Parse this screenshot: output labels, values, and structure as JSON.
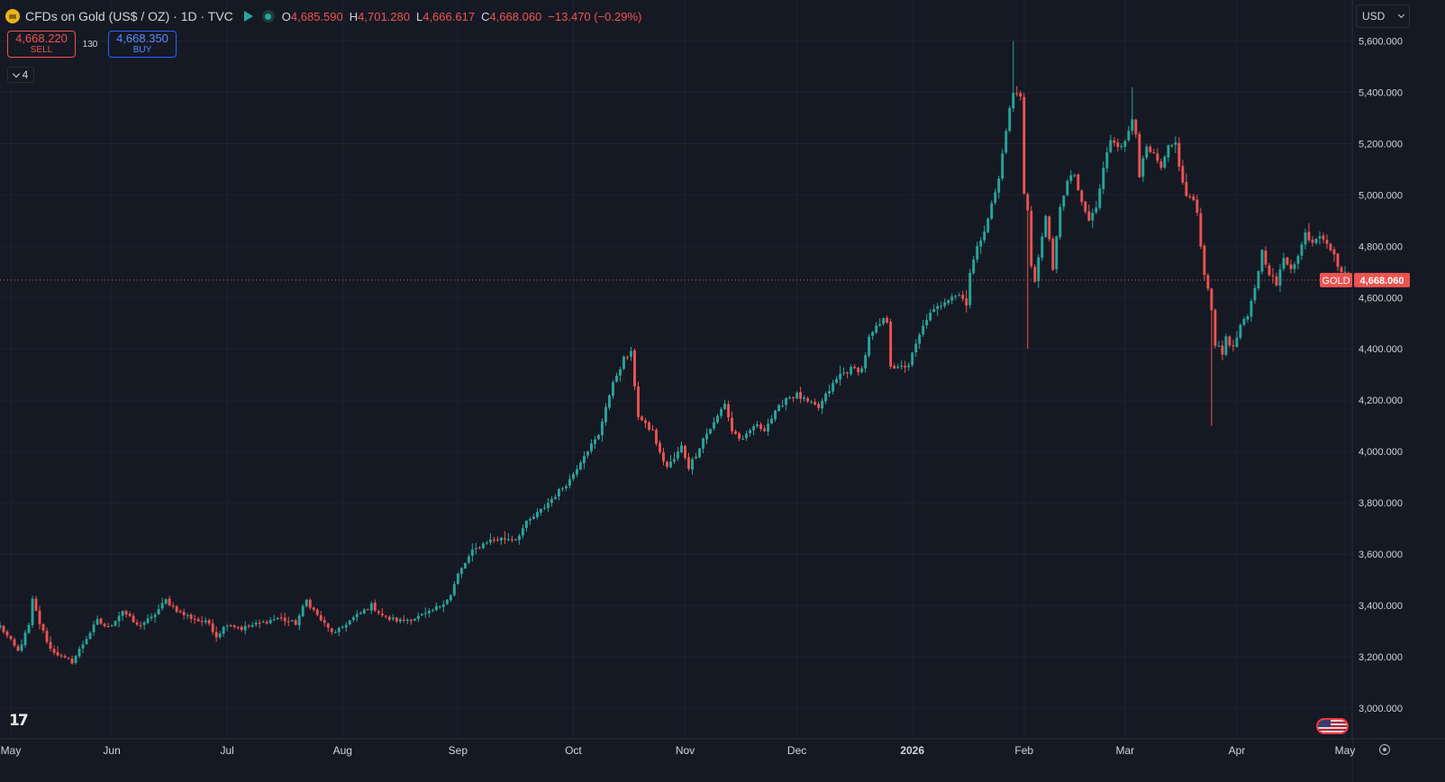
{
  "header": {
    "symbol_title": "CFDs on Gold (US$ / OZ) · 1D · TVC",
    "ohlc": {
      "open_label": "O",
      "open": "4,685.590",
      "high_label": "H",
      "high": "4,701.280",
      "low_label": "L",
      "low": "4,666.617",
      "close_label": "C",
      "close": "4,668.060",
      "change": "−13.470 (−0.29%)"
    }
  },
  "trade": {
    "sell_price": "4,668.220",
    "sell_label": "SELL",
    "spread": "130",
    "buy_price": "4,668.350",
    "buy_label": "BUY"
  },
  "indicators_toggle": {
    "count": "4"
  },
  "currency": {
    "selected": "USD"
  },
  "last_price": {
    "symbol": "GOLD",
    "value": "4,668.060",
    "numeric": 4668.06
  },
  "logo_text": "17",
  "colors": {
    "background": "#151924",
    "up": "#26a69a",
    "down": "#ef5350",
    "text": "#d1d4dc",
    "grid": "#1e2230",
    "buy": "#2962ff"
  },
  "chart_data": {
    "type": "candlestick",
    "title": "CFDs on Gold (US$ / OZ)",
    "interval": "1D",
    "source": "TVC",
    "currency": "USD",
    "ylim": [
      2880,
      5760
    ],
    "y_ticks": [
      "3,000.000",
      "3,200.000",
      "3,400.000",
      "3,600.000",
      "3,800.000",
      "4,000.000",
      "4,200.000",
      "4,400.000",
      "4,600.000",
      "4,800.000",
      "5,000.000",
      "5,200.000",
      "5,400.000",
      "5,600.000"
    ],
    "y_tick_values": [
      3000,
      3200,
      3400,
      3600,
      3800,
      4000,
      4200,
      4400,
      4600,
      4800,
      5000,
      5200,
      5400,
      5600
    ],
    "x_ticks": [
      {
        "label": "May",
        "index": 3
      },
      {
        "label": "Jun",
        "index": 31
      },
      {
        "label": "Jul",
        "index": 63
      },
      {
        "label": "Aug",
        "index": 95
      },
      {
        "label": "Sep",
        "index": 127
      },
      {
        "label": "Oct",
        "index": 159
      },
      {
        "label": "Nov",
        "index": 190
      },
      {
        "label": "Dec",
        "index": 221
      },
      {
        "label": "2026",
        "index": 253
      },
      {
        "label": "Feb",
        "index": 284
      },
      {
        "label": "Mar",
        "index": 312
      },
      {
        "label": "Apr",
        "index": 343
      },
      {
        "label": "May",
        "index": 373
      }
    ],
    "anchors": [
      [
        0,
        3320
      ],
      [
        2,
        3280
      ],
      [
        5,
        3220
      ],
      [
        8,
        3320
      ],
      [
        9,
        3420
      ],
      [
        11,
        3330
      ],
      [
        14,
        3230
      ],
      [
        18,
        3190
      ],
      [
        20,
        3180
      ],
      [
        23,
        3250
      ],
      [
        27,
        3340
      ],
      [
        30,
        3310
      ],
      [
        34,
        3380
      ],
      [
        38,
        3320
      ],
      [
        42,
        3350
      ],
      [
        46,
        3420
      ],
      [
        50,
        3370
      ],
      [
        55,
        3340
      ],
      [
        58,
        3330
      ],
      [
        60,
        3280
      ],
      [
        63,
        3330
      ],
      [
        67,
        3310
      ],
      [
        72,
        3330
      ],
      [
        77,
        3350
      ],
      [
        82,
        3330
      ],
      [
        85,
        3420
      ],
      [
        88,
        3360
      ],
      [
        91,
        3310
      ],
      [
        93,
        3290
      ],
      [
        96,
        3330
      ],
      [
        100,
        3370
      ],
      [
        103,
        3400
      ],
      [
        107,
        3350
      ],
      [
        111,
        3340
      ],
      [
        115,
        3350
      ],
      [
        119,
        3370
      ],
      [
        122,
        3400
      ],
      [
        125,
        3440
      ],
      [
        127,
        3520
      ],
      [
        131,
        3610
      ],
      [
        135,
        3650
      ],
      [
        139,
        3660
      ],
      [
        143,
        3660
      ],
      [
        146,
        3720
      ],
      [
        150,
        3770
      ],
      [
        154,
        3830
      ],
      [
        158,
        3890
      ],
      [
        162,
        3990
      ],
      [
        166,
        4060
      ],
      [
        168,
        4180
      ],
      [
        171,
        4300
      ],
      [
        173,
        4360
      ],
      [
        175,
        4380
      ],
      [
        177,
        4140
      ],
      [
        179,
        4100
      ],
      [
        181,
        4080
      ],
      [
        183,
        3990
      ],
      [
        185,
        3940
      ],
      [
        187,
        3970
      ],
      [
        189,
        4020
      ],
      [
        191,
        3940
      ],
      [
        193,
        3990
      ],
      [
        195,
        4050
      ],
      [
        198,
        4110
      ],
      [
        201,
        4190
      ],
      [
        203,
        4080
      ],
      [
        206,
        4040
      ],
      [
        209,
        4100
      ],
      [
        212,
        4090
      ],
      [
        215,
        4150
      ],
      [
        218,
        4210
      ],
      [
        221,
        4220
      ],
      [
        224,
        4190
      ],
      [
        227,
        4170
      ],
      [
        230,
        4240
      ],
      [
        233,
        4300
      ],
      [
        236,
        4320
      ],
      [
        239,
        4320
      ],
      [
        241,
        4440
      ],
      [
        243,
        4480
      ],
      [
        245,
        4510
      ],
      [
        246,
        4510
      ],
      [
        247,
        4340
      ],
      [
        249,
        4320
      ],
      [
        252,
        4340
      ],
      [
        255,
        4450
      ],
      [
        257,
        4520
      ],
      [
        260,
        4560
      ],
      [
        262,
        4590
      ],
      [
        264,
        4610
      ],
      [
        266,
        4610
      ],
      [
        268,
        4580
      ],
      [
        269,
        4700
      ],
      [
        271,
        4790
      ],
      [
        273,
        4870
      ],
      [
        275,
        4960
      ],
      [
        277,
        5060
      ],
      [
        279,
        5260
      ],
      [
        281,
        5400
      ],
      [
        283,
        5380
      ],
      [
        284,
        5010
      ],
      [
        285,
        4950
      ],
      [
        286,
        4720
      ],
      [
        287,
        4660
      ],
      [
        288,
        4750
      ],
      [
        290,
        4930
      ],
      [
        292,
        4700
      ],
      [
        294,
        4960
      ],
      [
        296,
        5050
      ],
      [
        298,
        5080
      ],
      [
        300,
        4960
      ],
      [
        302,
        4900
      ],
      [
        304,
        4950
      ],
      [
        306,
        5100
      ],
      [
        308,
        5220
      ],
      [
        310,
        5200
      ],
      [
        312,
        5200
      ],
      [
        314,
        5300
      ],
      [
        315,
        5250
      ],
      [
        316,
        5080
      ],
      [
        318,
        5180
      ],
      [
        320,
        5150
      ],
      [
        322,
        5100
      ],
      [
        324,
        5180
      ],
      [
        326,
        5200
      ],
      [
        328,
        5040
      ],
      [
        329,
        5000
      ],
      [
        331,
        4980
      ],
      [
        332,
        4920
      ],
      [
        333,
        4800
      ],
      [
        334,
        4700
      ],
      [
        336,
        4560
      ],
      [
        337,
        4420
      ],
      [
        339,
        4380
      ],
      [
        340,
        4450
      ],
      [
        342,
        4400
      ],
      [
        344,
        4490
      ],
      [
        346,
        4520
      ],
      [
        348,
        4640
      ],
      [
        350,
        4780
      ],
      [
        352,
        4700
      ],
      [
        354,
        4650
      ],
      [
        356,
        4750
      ],
      [
        358,
        4720
      ],
      [
        360,
        4760
      ],
      [
        362,
        4850
      ],
      [
        364,
        4820
      ],
      [
        366,
        4850
      ],
      [
        368,
        4820
      ],
      [
        370,
        4760
      ],
      [
        372,
        4700
      ],
      [
        374,
        4680
      ]
    ],
    "candle_count": 375,
    "last_close": 4668.06,
    "last_high": 4701.28,
    "last_low": 4666.617,
    "last_open": 4685.59
  }
}
